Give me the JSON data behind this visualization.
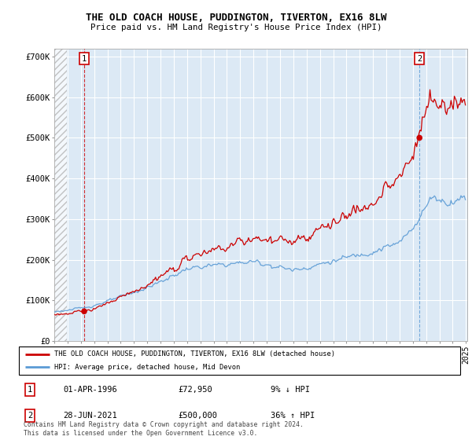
{
  "title1": "THE OLD COACH HOUSE, PUDDINGTON, TIVERTON, EX16 8LW",
  "title2": "Price paid vs. HM Land Registry's House Price Index (HPI)",
  "legend_line1": "THE OLD COACH HOUSE, PUDDINGTON, TIVERTON, EX16 8LW (detached house)",
  "legend_line2": "HPI: Average price, detached house, Mid Devon",
  "transaction1_date": "01-APR-1996",
  "transaction1_price": "£72,950",
  "transaction1_hpi": "9% ↓ HPI",
  "transaction2_date": "28-JUN-2021",
  "transaction2_price": "£500,000",
  "transaction2_hpi": "36% ↑ HPI",
  "footer": "Contains HM Land Registry data © Crown copyright and database right 2024.\nThis data is licensed under the Open Government Licence v3.0.",
  "hpi_color": "#5b9bd5",
  "property_color": "#cc0000",
  "marker_color": "#cc0000",
  "annotation_box_color": "#cc0000",
  "chart_bg": "#dce9f5",
  "ylim": [
    0,
    720000
  ],
  "yticks": [
    0,
    100000,
    200000,
    300000,
    400000,
    500000,
    600000,
    700000
  ],
  "ytick_labels": [
    "£0",
    "£100K",
    "£200K",
    "£300K",
    "£400K",
    "£500K",
    "£600K",
    "£700K"
  ],
  "t1_year": 1996.25,
  "t2_year": 2021.5,
  "prop_price1": 72950,
  "prop_price2": 500000
}
